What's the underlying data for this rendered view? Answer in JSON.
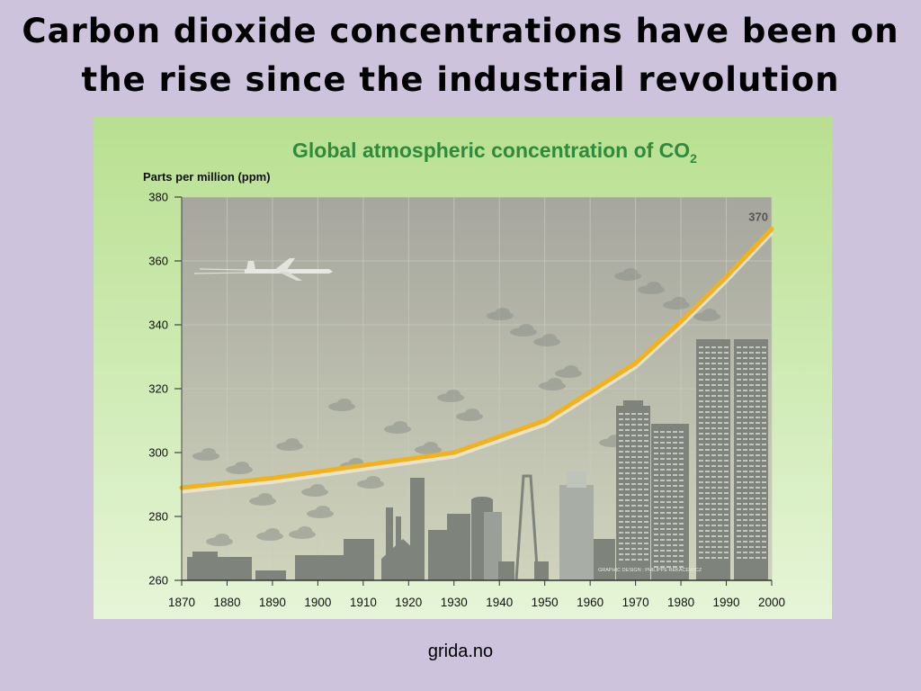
{
  "slide": {
    "title_line1": "Carbon dioxide concentrations have been on",
    "title_line2": "the rise since the industrial revolution",
    "source": "grida.no"
  },
  "colors": {
    "slide_background": "#cdc3dd",
    "chart_title": "#2f8a3c",
    "line": "#f2b21a",
    "line_shadow": "#e9e6d2",
    "plot_top": "#a6a69e",
    "plot_bottom": "#d0d4bc",
    "frame_top": "#b8e090",
    "frame_bottom": "#e6f5d8",
    "silhouette": "#7e847c"
  },
  "chart_data": {
    "type": "line",
    "title": "Global atmospheric concentration of CO",
    "title_subscript": "2",
    "ylabel": "Parts per million (ppm)",
    "xlabel": "",
    "xlim": [
      1870,
      2000
    ],
    "ylim": [
      260,
      380
    ],
    "x_ticks": [
      1870,
      1880,
      1890,
      1900,
      1910,
      1920,
      1930,
      1940,
      1950,
      1960,
      1970,
      1980,
      1990,
      2000
    ],
    "y_ticks": [
      260,
      280,
      300,
      320,
      340,
      360,
      380
    ],
    "grid": true,
    "series": [
      {
        "x": [
          1870,
          1880,
          1890,
          1900,
          1910,
          1920,
          1930,
          1940,
          1950,
          1960,
          1970,
          1980,
          1990,
          2000
        ],
        "values": [
          289,
          290.5,
          292,
          294,
          296,
          298,
          300,
          305,
          310,
          319,
          328,
          341,
          355,
          370
        ]
      }
    ],
    "annotations": [
      {
        "x": 2000,
        "y": 370,
        "text": "370"
      }
    ],
    "credit": "GRAPHIC DESIGN : PHILIPPE REKACEWICZ"
  }
}
